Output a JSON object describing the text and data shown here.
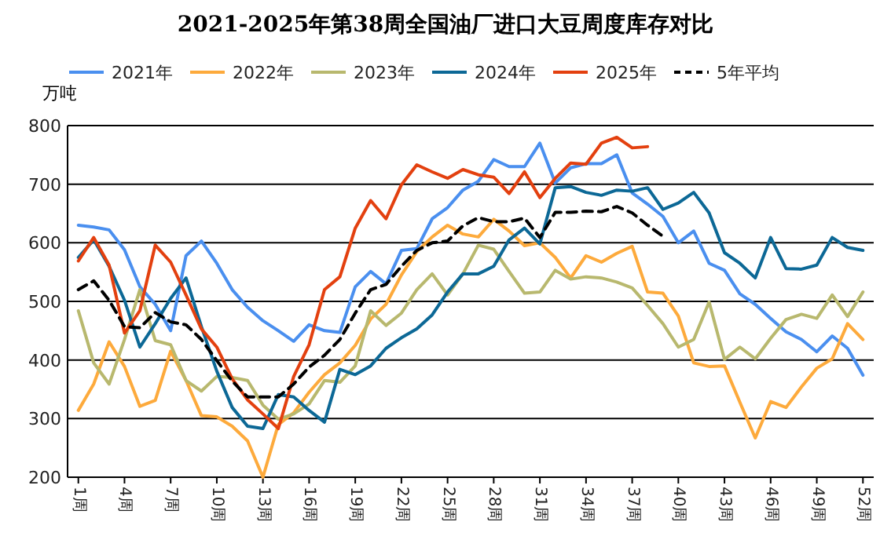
{
  "chart_data": {
    "type": "line",
    "title": "2021-2025年第38周全国油厂进口大豆周度库存对比",
    "ylabel": "万吨",
    "x": [
      1,
      2,
      3,
      4,
      5,
      6,
      7,
      8,
      9,
      10,
      11,
      12,
      13,
      14,
      15,
      16,
      17,
      18,
      19,
      20,
      21,
      22,
      23,
      24,
      25,
      26,
      27,
      28,
      29,
      30,
      31,
      32,
      33,
      34,
      35,
      36,
      37,
      38,
      39,
      40,
      41,
      42,
      43,
      44,
      45,
      46,
      47,
      48,
      49,
      50,
      51,
      52
    ],
    "xlim": [
      0.3,
      52.7
    ],
    "xticks": [
      {
        "value": 1,
        "label": "1周"
      },
      {
        "value": 4,
        "label": "4周"
      },
      {
        "value": 7,
        "label": "7周"
      },
      {
        "value": 10,
        "label": "10周"
      },
      {
        "value": 13,
        "label": "13周"
      },
      {
        "value": 16,
        "label": "16周"
      },
      {
        "value": 19,
        "label": "19周"
      },
      {
        "value": 22,
        "label": "22周"
      },
      {
        "value": 25,
        "label": "25周"
      },
      {
        "value": 28,
        "label": "28周"
      },
      {
        "value": 31,
        "label": "31周"
      },
      {
        "value": 34,
        "label": "34周"
      },
      {
        "value": 37,
        "label": "37周"
      },
      {
        "value": 40,
        "label": "40周"
      },
      {
        "value": 43,
        "label": "43周"
      },
      {
        "value": 46,
        "label": "46周"
      },
      {
        "value": 49,
        "label": "49周"
      },
      {
        "value": 52,
        "label": "52周"
      }
    ],
    "ylim": [
      200,
      800
    ],
    "yticks": [
      200,
      300,
      400,
      500,
      600,
      700,
      800
    ],
    "grid": "y",
    "legend": "top",
    "marker": "none",
    "series": [
      {
        "name": "2021年",
        "color": "#4a8fef",
        "line_style": "solid",
        "values": [
          630,
          627,
          622,
          588,
          525,
          495,
          450,
          578,
          603,
          565,
          520,
          490,
          467,
          450,
          432,
          460,
          450,
          447,
          525,
          551,
          530,
          587,
          590,
          641,
          660,
          690,
          705,
          742,
          730,
          730,
          770,
          702,
          728,
          735,
          735,
          750,
          685,
          666,
          645,
          600,
          620,
          565,
          553,
          513,
          495,
          471,
          448,
          435,
          414,
          441,
          420,
          374
        ]
      },
      {
        "name": "2022年",
        "color": "#fdaa3c",
        "line_style": "solid",
        "values": [
          314,
          359,
          431,
          389,
          321,
          331,
          415,
          365,
          305,
          303,
          287,
          262,
          200,
          290,
          310,
          345,
          375,
          395,
          425,
          470,
          495,
          545,
          585,
          610,
          630,
          615,
          610,
          640,
          620,
          595,
          600,
          575,
          540,
          578,
          567,
          582,
          594,
          516,
          514,
          475,
          395,
          389,
          390,
          328,
          267,
          329,
          319,
          354,
          386,
          402,
          462,
          435
        ]
      },
      {
        "name": "2023年",
        "color": "#b8b86e",
        "line_style": "solid",
        "values": [
          484,
          395,
          359,
          435,
          520,
          433,
          426,
          365,
          347,
          372,
          370,
          365,
          323,
          299,
          308,
          325,
          365,
          362,
          390,
          484,
          459,
          480,
          520,
          547,
          511,
          547,
          596,
          589,
          551,
          514,
          516,
          553,
          538,
          542,
          540,
          533,
          523,
          493,
          462,
          422,
          435,
          499,
          401,
          422,
          402,
          437,
          469,
          478,
          471,
          511,
          474,
          516
        ]
      },
      {
        "name": "2024年",
        "color": "#0c6896",
        "line_style": "solid",
        "values": [
          575,
          605,
          560,
          502,
          422,
          462,
          505,
          540,
          457,
          381,
          319,
          287,
          283,
          341,
          337,
          314,
          294,
          384,
          375,
          390,
          420,
          438,
          453,
          477,
          516,
          547,
          547,
          560,
          605,
          625,
          598,
          694,
          696,
          686,
          681,
          690,
          688,
          694,
          657,
          668,
          686,
          651,
          583,
          565,
          540,
          609,
          556,
          555,
          562,
          609,
          592,
          587
        ]
      },
      {
        "name": "2025年",
        "color": "#e3400f",
        "line_style": "solid",
        "values": [
          569,
          609,
          562,
          446,
          484,
          596,
          567,
          511,
          453,
          422,
          368,
          332,
          308,
          283,
          372,
          426,
          520,
          542,
          625,
          672,
          641,
          699,
          733,
          721,
          710,
          725,
          716,
          712,
          684,
          721,
          677,
          710,
          736,
          734,
          770,
          780,
          762,
          764,
          null,
          null,
          null,
          null,
          null,
          null,
          null,
          null,
          null,
          null,
          null,
          null,
          null,
          null
        ]
      },
      {
        "name": "5年平均",
        "color": "#000000",
        "line_style": "dashed",
        "values": [
          520,
          535,
          502,
          457,
          455,
          481,
          465,
          460,
          435,
          399,
          364,
          337,
          337,
          337,
          359,
          388,
          408,
          435,
          480,
          520,
          529,
          560,
          587,
          600,
          603,
          629,
          643,
          636,
          636,
          642,
          609,
          652,
          652,
          654,
          653,
          662,
          651,
          630,
          611,
          null,
          null,
          null,
          null,
          null,
          null,
          null,
          null,
          null,
          null,
          null,
          null,
          null
        ]
      }
    ]
  }
}
